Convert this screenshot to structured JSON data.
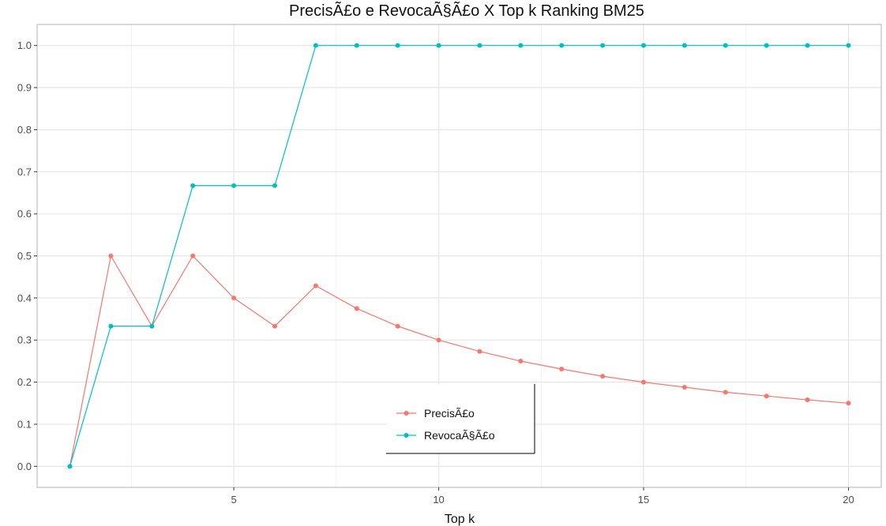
{
  "chart_data": {
    "type": "line",
    "title": "PrecisÃ£o e RevocaÃ§Ã£o X Top k Ranking BM25",
    "xlabel": "Top k",
    "ylabel": "",
    "xlim": [
      0.2,
      20.8
    ],
    "ylim": [
      -0.05,
      1.05
    ],
    "xticks": [
      5,
      10,
      15,
      20
    ],
    "yticks": [
      0.0,
      0.1,
      0.2,
      0.3,
      0.4,
      0.5,
      0.6,
      0.7,
      0.8,
      0.9,
      1.0
    ],
    "grid": true,
    "legend_position": "bottom-center",
    "x": [
      1,
      2,
      3,
      4,
      5,
      6,
      7,
      8,
      9,
      10,
      11,
      12,
      13,
      14,
      15,
      16,
      17,
      18,
      19,
      20
    ],
    "series": [
      {
        "name": "PrecisÃ£o",
        "color": "#F8766D",
        "values": [
          0.0,
          0.5,
          0.333,
          0.5,
          0.4,
          0.333,
          0.429,
          0.375,
          0.333,
          0.3,
          0.273,
          0.25,
          0.231,
          0.214,
          0.2,
          0.188,
          0.176,
          0.167,
          0.158,
          0.15
        ]
      },
      {
        "name": "RevocaÃ§Ã£o",
        "color": "#00BFC4",
        "values": [
          0.0,
          0.333,
          0.333,
          0.667,
          0.667,
          0.667,
          1.0,
          1.0,
          1.0,
          1.0,
          1.0,
          1.0,
          1.0,
          1.0,
          1.0,
          1.0,
          1.0,
          1.0,
          1.0,
          1.0
        ]
      }
    ]
  }
}
